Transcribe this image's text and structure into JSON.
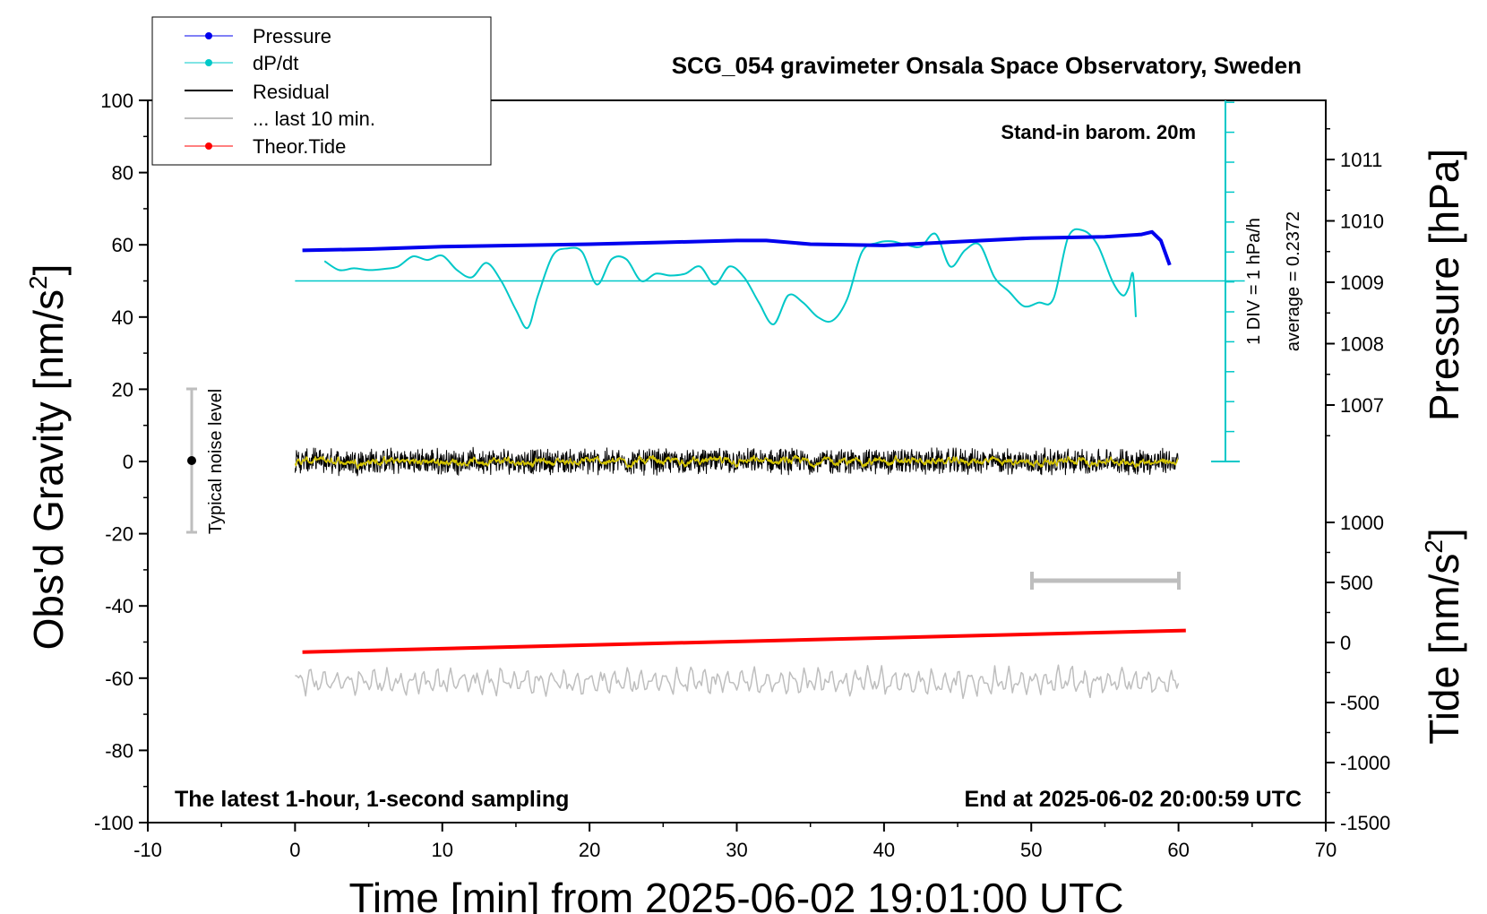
{
  "chart_data": {
    "type": "line",
    "title": "SCG_054 gravimeter Onsala Space Observatory, Sweden",
    "xlabel": "Time [min] from 2025-06-02 19:01:00 UTC",
    "ylabel_left": "Obs'd Gravity [nm/s",
    "ylabel_left_sup": "2",
    "ylabel_left_end": "]",
    "ylabel_right_top": "Pressure [hPa]",
    "ylabel_right_bottom": "Tide [nm/s",
    "ylabel_right_bottom_sup": "2",
    "ylabel_right_bottom_end": "]",
    "xlim": [
      -10,
      70
    ],
    "ylim": [
      -100,
      100
    ],
    "x_ticks": [
      "-10",
      "0",
      "10",
      "20",
      "30",
      "40",
      "50",
      "60",
      "70"
    ],
    "y_ticks": [
      "100",
      "80",
      "60",
      "40",
      "20",
      "0",
      "-20",
      "-40",
      "-60",
      "-80",
      "-100"
    ],
    "pressure_axis": {
      "range": [
        1006,
        1012
      ],
      "ticks": [
        "1011",
        "1010",
        "1009",
        "1008",
        "1007"
      ]
    },
    "tide_axis": {
      "range": [
        -1500,
        1500
      ],
      "ticks": [
        "1000",
        "500",
        "0",
        "-500",
        "-1000",
        "-1500"
      ]
    },
    "legend": {
      "placement": "top-left",
      "entries": [
        {
          "label": "Pressure",
          "color": "#0000ee",
          "marker": true
        },
        {
          "label": "dP/dt",
          "color": "#00c8c8",
          "marker": true
        },
        {
          "label": "Residual",
          "color": "#000000",
          "marker": false
        },
        {
          "label": "... last 10 min.",
          "color": "#bebebe",
          "marker": false
        },
        {
          "label": "Theor.Tide",
          "color": "#ff0000",
          "marker": true
        }
      ]
    },
    "annotations": {
      "stand_in": "Stand-in barom. 20m",
      "div_label": "1 DIV = 1 hPa/h",
      "average_label": "average = 0.2372",
      "noise_label": "Typical noise level",
      "bottom_left": "The latest 1-hour, 1-second sampling",
      "bottom_right": "End at 2025-06-02 20:00:59 UTC"
    },
    "series": [
      {
        "name": "Pressure",
        "color": "#0000ee",
        "axis": "pressure",
        "x": [
          0.5,
          5,
          10,
          15,
          20,
          25,
          30,
          32,
          35,
          40,
          45,
          50,
          55,
          57.5,
          58.2,
          58.8,
          59.4
        ],
        "values": [
          1009.52,
          1009.54,
          1009.58,
          1009.6,
          1009.62,
          1009.65,
          1009.68,
          1009.68,
          1009.62,
          1009.6,
          1009.66,
          1009.72,
          1009.74,
          1009.78,
          1009.82,
          1009.68,
          1009.28
        ]
      },
      {
        "name": "dP/dt",
        "color": "#00c8c8",
        "axis": "left",
        "x": [
          2,
          3,
          4,
          5,
          6,
          7,
          8,
          9,
          10,
          11,
          12,
          13,
          14,
          15,
          15.8,
          16.5,
          17.5,
          18.5,
          19.5,
          20.5,
          21.5,
          22.5,
          23.5,
          24.5,
          25.5,
          26.5,
          27.5,
          28.5,
          29.5,
          30.5,
          31.5,
          32.5,
          33.5,
          34.5,
          35.5,
          36.5,
          37.5,
          38.5,
          39.5,
          40.5,
          41.5,
          42.5,
          43.5,
          44.5,
          45.5,
          46.5,
          47.5,
          48.5,
          49.5,
          50.5,
          51.5,
          52.5,
          53.5,
          54.5,
          55.5,
          56.2,
          56.6,
          56.9,
          57.1
        ],
        "values": [
          55.5,
          53,
          53.5,
          53,
          53.3,
          54,
          56.8,
          55.8,
          57,
          53,
          51,
          55,
          50,
          42,
          37,
          46,
          57,
          59,
          58,
          49,
          56,
          56,
          50,
          52,
          51.5,
          52,
          54,
          49,
          54,
          51,
          44,
          38,
          46,
          44,
          40,
          39,
          45,
          58,
          60.5,
          61,
          60,
          59.5,
          63,
          54,
          58.5,
          60,
          51,
          47,
          43,
          44,
          45,
          62,
          64,
          60,
          50,
          46,
          48,
          52,
          40
        ]
      },
      {
        "name": "Residual",
        "color": "#000000",
        "axis": "left",
        "x_start": 0,
        "x_end": 60,
        "center": 0,
        "amplitude": 3
      },
      {
        "name": "... last 10 min.",
        "color": "#bebebe",
        "axis": "left",
        "x_start": 0,
        "x_end": 60,
        "center": -61,
        "amplitude": 3.5
      },
      {
        "name": "Theor.Tide",
        "color": "#ff0000",
        "axis": "tide",
        "x": [
          0.5,
          60.5
        ],
        "values": [
          -80,
          100
        ]
      }
    ]
  }
}
